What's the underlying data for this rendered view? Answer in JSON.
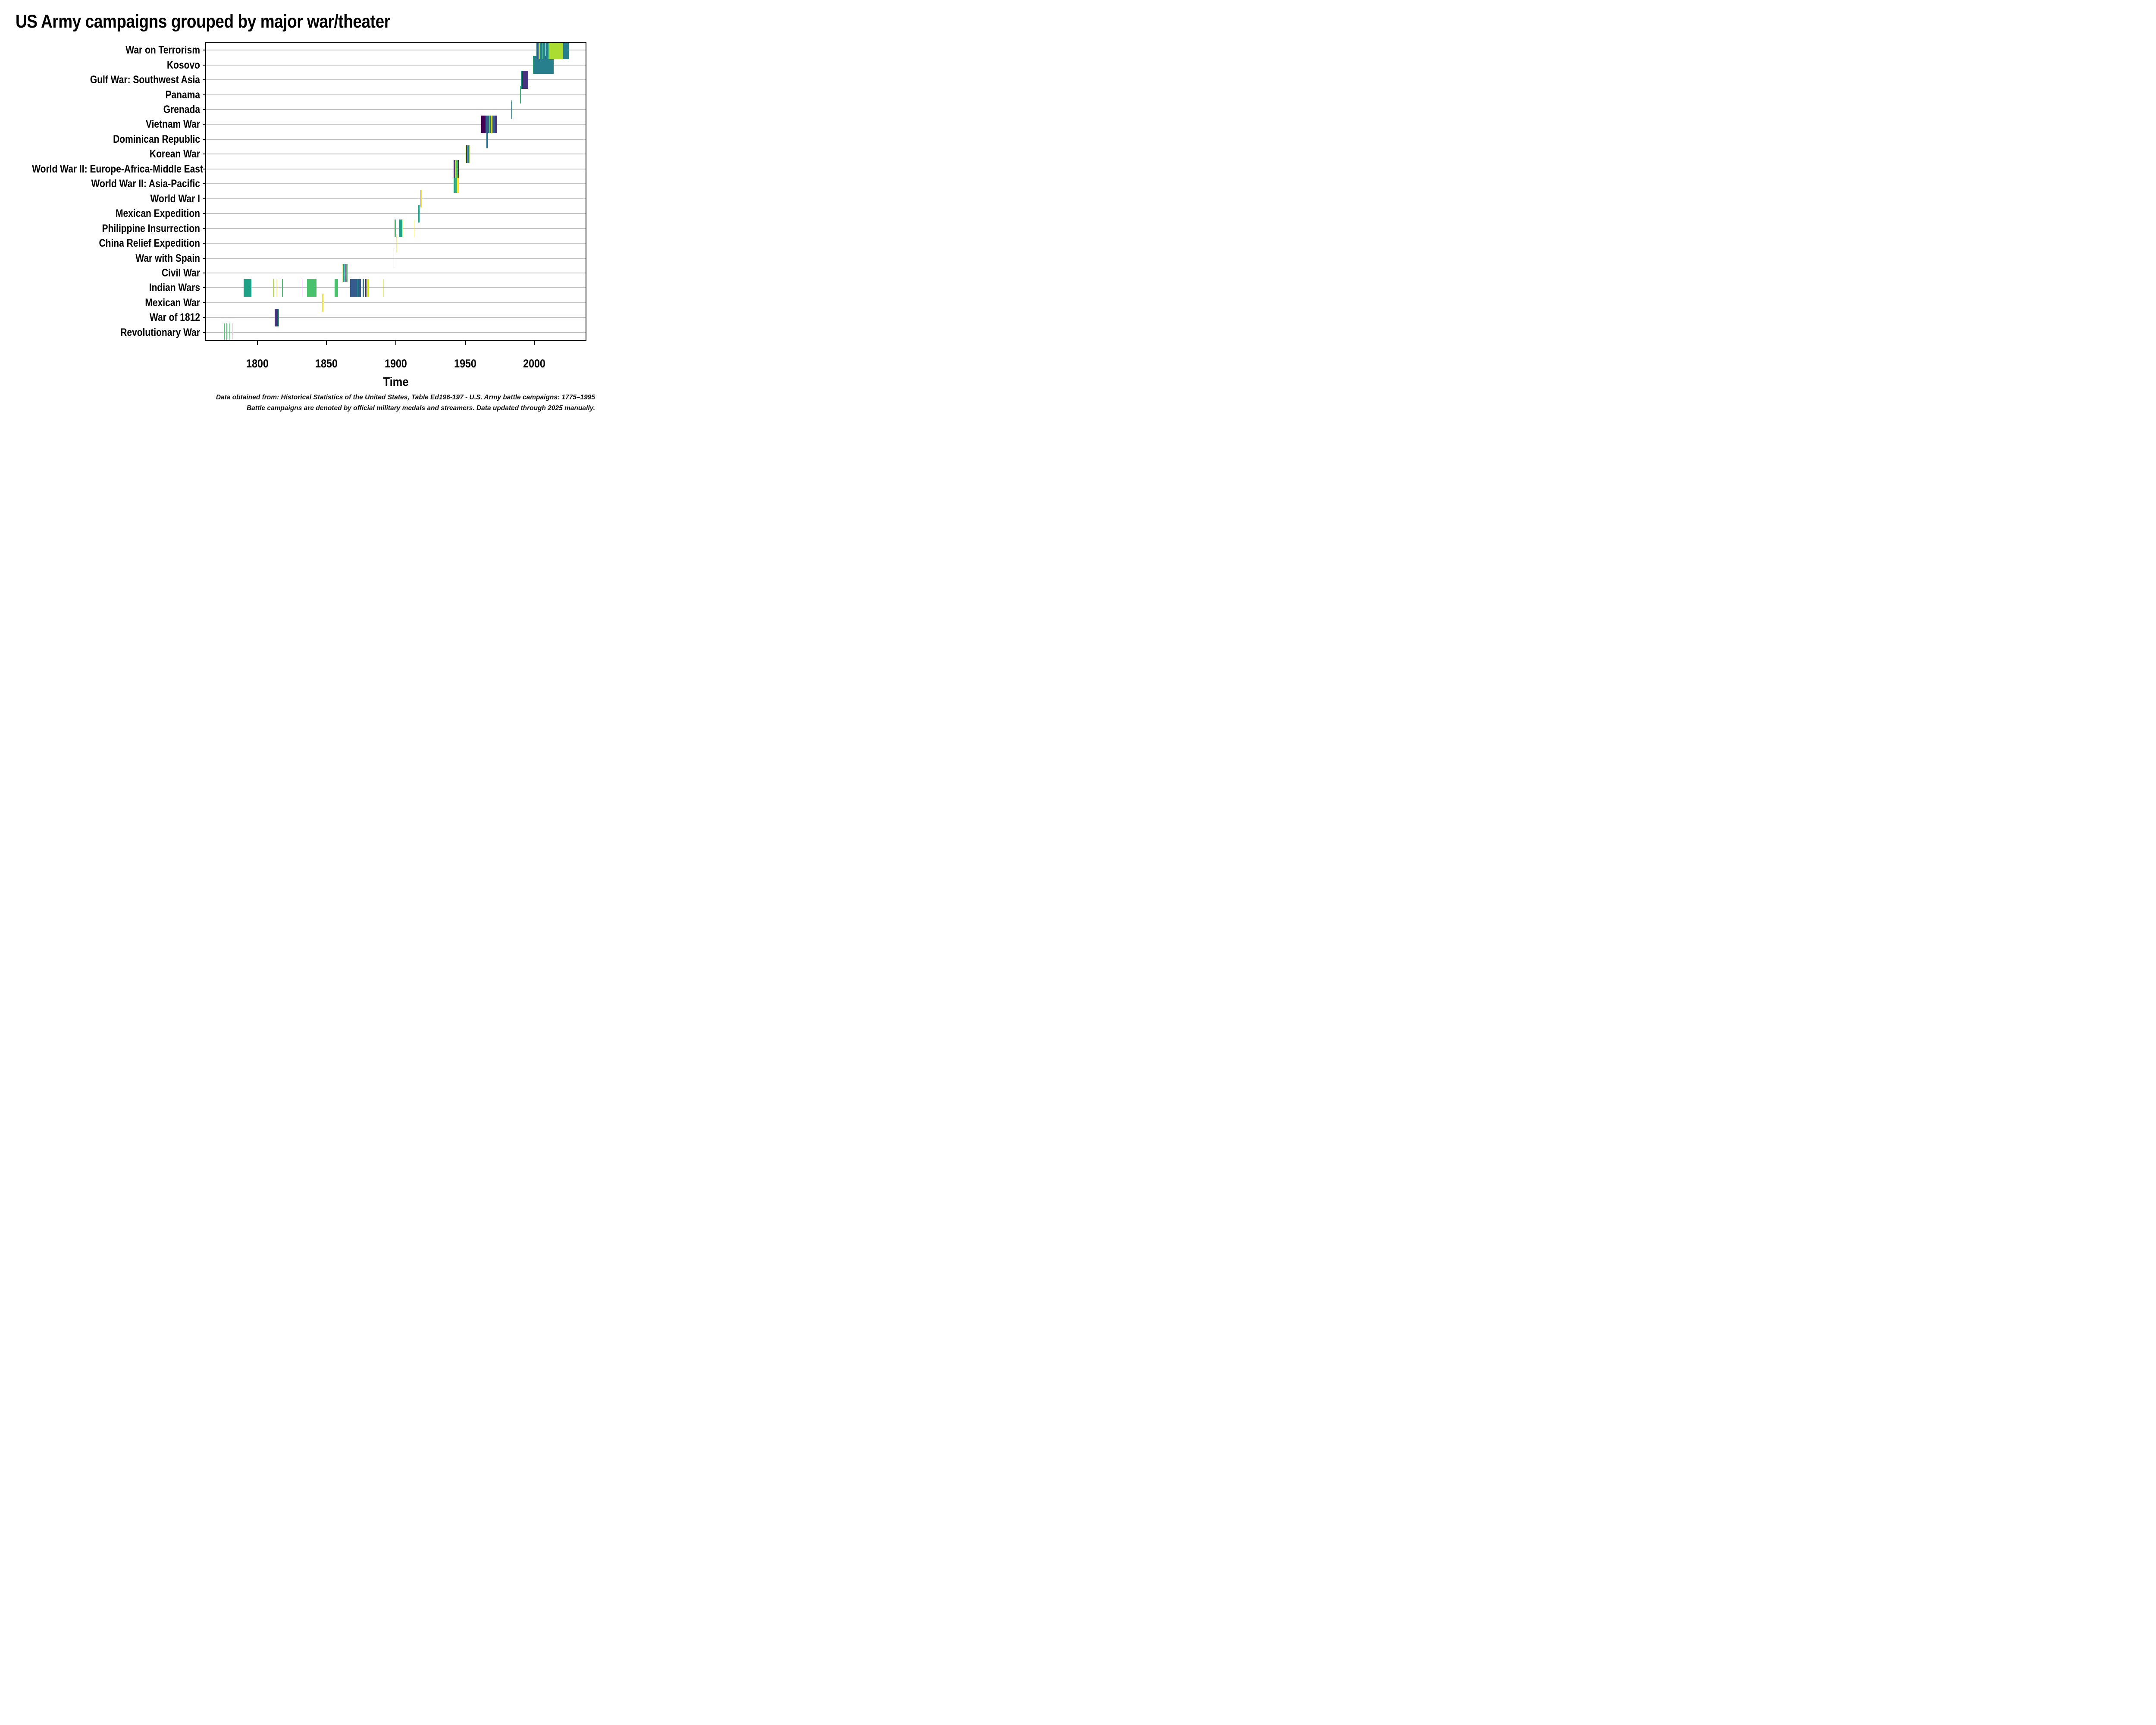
{
  "title": "US Army campaigns grouped by major war/theater",
  "xlabel": "Time",
  "caption": {
    "line1": "Data obtained from: Historical Statistics of the United States, Table Ed196-197 - U.S. Army battle campaigns: 1775–1995",
    "line2": "Battle campaigns are denoted by official military medals and streamers. Data updated through 2025 manually."
  },
  "chart_data": {
    "type": "bar",
    "subtype": "horizontal-timeline-gantt",
    "title": "US Army campaigns grouped by major war/theater",
    "xlabel": "Time",
    "ylabel": "",
    "x_range": [
      1763,
      2037
    ],
    "x_ticks": [
      1800,
      1850,
      1900,
      1950,
      2000
    ],
    "grid": "horizontal",
    "legend": "none",
    "palette": {
      "purple": "#440154",
      "indigo": "#46327e",
      "navy": "#365c8d",
      "steelblue": "#2d708e",
      "teal": "#277f8e",
      "tealgreen": "#1fa187",
      "green": "#35b779",
      "brightgreen": "#4ac16d",
      "lime": "#aadc32",
      "limeyellow": "#d4e21f",
      "yellow": "#fde725",
      "paleyellow": "#eef0b8"
    },
    "grid_color": "#c3c3c3",
    "rows": [
      {
        "label": "War on Terrorism",
        "segments": [
          [
            2001.4,
            2001.7,
            "teal"
          ],
          [
            2001.72,
            2002.92,
            "navy"
          ],
          [
            2002.95,
            2004.1,
            "lime"
          ],
          [
            2004.12,
            2005.6,
            "teal"
          ],
          [
            2005.62,
            2006.42,
            "green"
          ],
          [
            2006.45,
            2008.2,
            "teal"
          ],
          [
            2008.25,
            2009.9,
            "teal"
          ],
          [
            2009.92,
            2010.75,
            "green"
          ],
          [
            2010.78,
            2014.15,
            "lime"
          ],
          [
            2014.2,
            2020.9,
            "lime"
          ],
          [
            2020.95,
            2024.8,
            "teal"
          ]
        ]
      },
      {
        "label": "Kosovo",
        "segments": [
          [
            1999.0,
            1999.35,
            "green"
          ],
          [
            1999.35,
            2013.9,
            "teal"
          ]
        ]
      },
      {
        "label": "Gulf War: Southwest Asia",
        "segments": [
          [
            1990.4,
            1990.85,
            "teal"
          ],
          [
            1990.9,
            1991.15,
            "green"
          ],
          [
            1991.2,
            1995.7,
            "indigo"
          ]
        ]
      },
      {
        "label": "Panama",
        "segments": [
          [
            1989.8,
            1990.1,
            "green"
          ]
        ]
      },
      {
        "label": "Grenada",
        "segments": [
          [
            1983.5,
            1983.9,
            "teal"
          ]
        ]
      },
      {
        "label": "Vietnam War",
        "segments": [
          [
            1961.6,
            1964.7,
            "purple"
          ],
          [
            1964.72,
            1965.6,
            "navy"
          ],
          [
            1965.64,
            1966.5,
            "navy"
          ],
          [
            1966.54,
            1967.38,
            "navy"
          ],
          [
            1967.4,
            1967.75,
            "brightgreen"
          ],
          [
            1967.78,
            1968.48,
            "navy"
          ],
          [
            1968.5,
            1969.1,
            "lime"
          ],
          [
            1969.1,
            1969.8,
            "yellow"
          ],
          [
            1969.82,
            1970.62,
            "navy"
          ],
          [
            1970.66,
            1971.6,
            "navy"
          ],
          [
            1971.62,
            1973.0,
            "indigo"
          ]
        ]
      },
      {
        "label": "Dominican Republic",
        "segments": [
          [
            1965.3,
            1966.7,
            "steelblue"
          ]
        ]
      },
      {
        "label": "Korean War",
        "segments": [
          [
            1950.4,
            1950.62,
            "lime"
          ],
          [
            1950.64,
            1950.9,
            "navy"
          ],
          [
            1950.9,
            1951.2,
            "indigo"
          ],
          [
            1951.22,
            1951.75,
            "lime"
          ],
          [
            1951.8,
            1952.6,
            "teal"
          ],
          [
            1952.62,
            1953.0,
            "brightgreen"
          ],
          [
            1953.02,
            1953.35,
            "lime"
          ]
        ]
      },
      {
        "label": "World War II: Europe-Africa-Middle East",
        "segments": [
          [
            1941.8,
            1942.45,
            "purple"
          ],
          [
            1942.5,
            1943.0,
            "navy"
          ],
          [
            1943.02,
            1943.3,
            "limeyellow"
          ],
          [
            1943.32,
            1943.44,
            "indigo"
          ],
          [
            1943.46,
            1944.95,
            "brightgreen"
          ],
          [
            1945.05,
            1945.5,
            "purple"
          ]
        ]
      },
      {
        "label": "World War II: Asia-Pacific",
        "segments": [
          [
            1941.8,
            1942.35,
            "green"
          ],
          [
            1942.38,
            1942.6,
            "teal"
          ],
          [
            1942.62,
            1944.2,
            "green"
          ],
          [
            1944.25,
            1945.5,
            "yellow"
          ]
        ]
      },
      {
        "label": "World War I",
        "segments": [
          [
            1917.4,
            1917.56,
            "indigo",
            0.55
          ],
          [
            1917.6,
            1917.78,
            "brightgreen"
          ],
          [
            1917.8,
            1918.55,
            "yellow"
          ]
        ]
      },
      {
        "label": "Mexican Expedition",
        "segments": [
          [
            1916.0,
            1917.05,
            "tealgreen"
          ]
        ]
      },
      {
        "label": "Philippine Insurrection",
        "segments": [
          [
            1899.0,
            1899.15,
            "lime"
          ],
          [
            1899.18,
            1899.5,
            "brightgreen"
          ],
          [
            1899.55,
            1899.68,
            "navy"
          ],
          [
            1899.72,
            1900.1,
            "brightgreen"
          ],
          [
            1902.1,
            1904.7,
            "tealgreen"
          ],
          [
            1904.78,
            1904.92,
            "yellow",
            0.5
          ],
          [
            1913.0,
            1913.18,
            "yellow",
            0.5
          ]
        ]
      },
      {
        "label": "China Relief Expedition",
        "segments": [
          [
            1900.2,
            1901.0,
            "limeyellow",
            0.45
          ]
        ]
      },
      {
        "label": "War with Spain",
        "segments": [
          [
            1898.3,
            1898.62,
            "green"
          ]
        ]
      },
      {
        "label": "Civil War",
        "segments": [
          [
            1861.3,
            1861.42,
            "yellow",
            0.5
          ],
          [
            1861.9,
            1862.1,
            "brightgreen"
          ],
          [
            1862.1,
            1862.82,
            "tealgreen"
          ],
          [
            1862.88,
            1863.22,
            "yellow"
          ],
          [
            1863.28,
            1863.38,
            "paleyellow"
          ],
          [
            1863.4,
            1863.52,
            "indigo"
          ],
          [
            1863.54,
            1863.66,
            "brightgreen"
          ],
          [
            1864.2,
            1864.72,
            "brightgreen"
          ],
          [
            1864.74,
            1864.8,
            "green"
          ],
          [
            1864.82,
            1865.15,
            "brightgreen"
          ]
        ]
      },
      {
        "label": "Indian Wars",
        "segments": [
          [
            1790.2,
            1795.6,
            "tealgreen"
          ],
          [
            1811.6,
            1811.85,
            "lime"
          ],
          [
            1813.9,
            1814.05,
            "yellow",
            0.5
          ],
          [
            1817.95,
            1818.3,
            "brightgreen"
          ],
          [
            1832.1,
            1832.4,
            "purple"
          ],
          [
            1835.9,
            1842.6,
            "brightgreen"
          ],
          [
            1855.9,
            1858.2,
            "brightgreen"
          ],
          [
            1866.9,
            1871.9,
            "navy"
          ],
          [
            1871.9,
            1872.95,
            "teal"
          ],
          [
            1873.0,
            1874.9,
            "navy"
          ],
          [
            1875.95,
            1876.95,
            "teal"
          ],
          [
            1877.9,
            1878.75,
            "indigo"
          ],
          [
            1879.6,
            1880.45,
            "limeyellow"
          ],
          [
            1890.8,
            1891.05,
            "limeyellow",
            0.55
          ]
        ]
      },
      {
        "label": "Mexican War",
        "segments": [
          [
            1846.85,
            1847.05,
            "yellow"
          ],
          [
            1847.45,
            1847.6,
            "paleyellow"
          ]
        ]
      },
      {
        "label": "War of 1812",
        "segments": [
          [
            1812.5,
            1814.8,
            "indigo"
          ],
          [
            1814.82,
            1815.18,
            "green"
          ],
          [
            1815.2,
            1815.5,
            "indigo"
          ]
        ]
      },
      {
        "label": "Revolutionary War",
        "segments": [
          [
            1775.8,
            1776.0,
            "purple"
          ],
          [
            1776.0,
            1776.65,
            "brightgreen"
          ],
          [
            1777.7,
            1778.2,
            "brightgreen"
          ],
          [
            1779.9,
            1780.12,
            "brightgreen",
            0.8
          ],
          [
            1781.9,
            1782.15,
            "yellow"
          ]
        ]
      }
    ]
  }
}
